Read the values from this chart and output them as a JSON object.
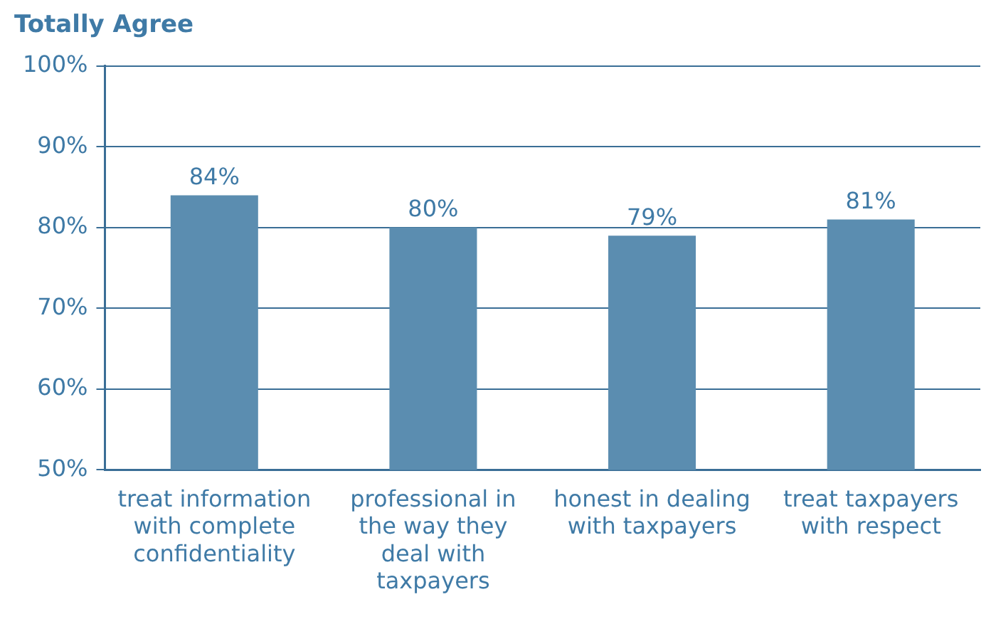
{
  "chart_data": {
    "type": "bar",
    "title": "Totally Agree",
    "categories": [
      "treat information with complete confidentiality",
      "professional in the way they deal with taxpayers",
      "honest in dealing with taxpayers",
      "treat taxpayers with respect"
    ],
    "values": [
      84,
      80,
      79,
      81
    ],
    "color": "#5b8db0",
    "value_labels": [
      "84%",
      "80%",
      "79%",
      "81%"
    ],
    "ylim": [
      50,
      100
    ],
    "yticks": [
      {
        "value": 50,
        "label": "50%"
      },
      {
        "value": 60,
        "label": "60%"
      },
      {
        "value": 70,
        "label": "70%"
      },
      {
        "value": 80,
        "label": "80%"
      },
      {
        "value": 90,
        "label": "90%"
      },
      {
        "value": 100,
        "label": "100%"
      }
    ],
    "grid": "y"
  }
}
